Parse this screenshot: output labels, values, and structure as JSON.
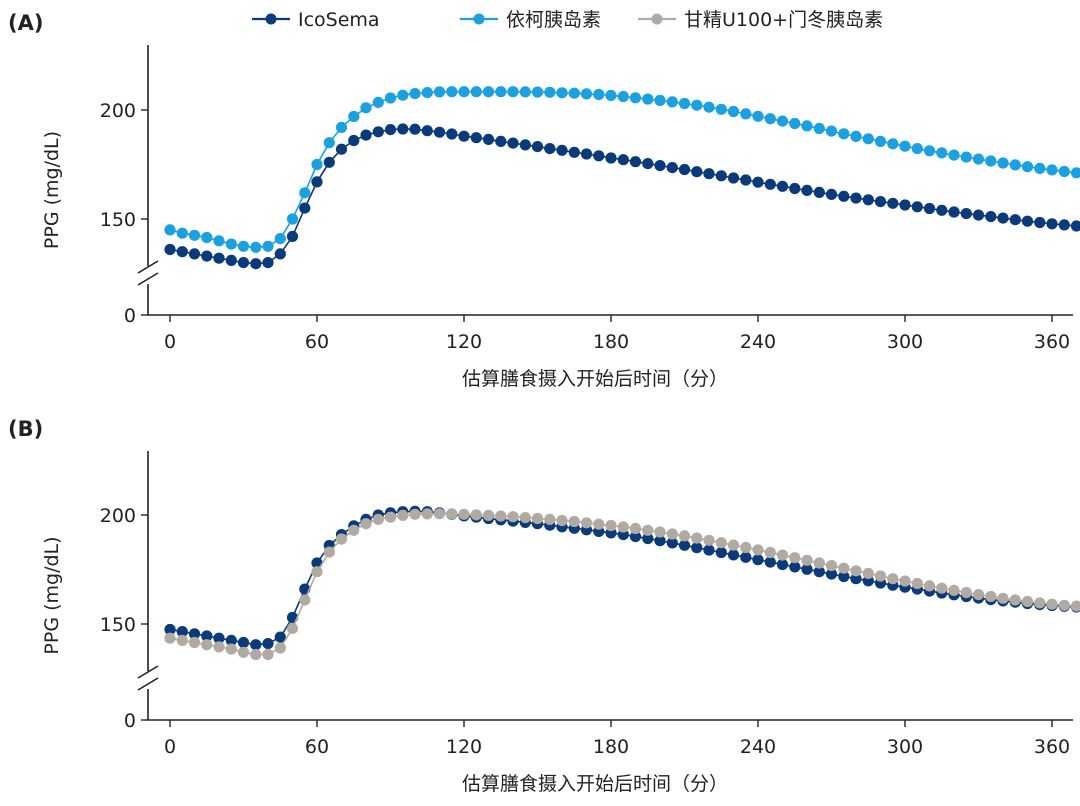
{
  "colors": {
    "icosema": "#0a3a7a",
    "glargine": "#1ba1e0",
    "degludec": "#b0aaa3",
    "axis": "#222222"
  },
  "legend": [
    {
      "label": "IcoSema",
      "color": "#0a3a7a"
    },
    {
      "label": "依柯胰岛素",
      "color": "#1ba1e0"
    },
    {
      "label": "甘精U100+门冬胰岛素",
      "color": "#b0aaa3"
    }
  ],
  "chart_data": [
    {
      "panel_label": "(A)",
      "type": "scatter",
      "ylabel": "PPG (mg/dL)",
      "xlabel": "估算膳食摄入开始后时间（分）",
      "x_ticks": [
        0,
        60,
        120,
        180,
        240,
        300,
        360
      ],
      "y_ticks": [
        0,
        150,
        200
      ],
      "xlim": [
        -8,
        372
      ],
      "ylim": [
        0,
        230
      ],
      "axis_break": "between 0 and ~135",
      "grid": false,
      "legend_position": "top",
      "x": [
        0,
        5,
        10,
        15,
        20,
        25,
        30,
        35,
        40,
        45,
        50,
        55,
        60,
        65,
        70,
        75,
        80,
        85,
        90,
        95,
        100,
        105,
        110,
        115,
        120,
        125,
        130,
        135,
        140,
        145,
        150,
        155,
        160,
        165,
        170,
        175,
        180,
        185,
        190,
        195,
        200,
        205,
        210,
        215,
        220,
        225,
        230,
        235,
        240,
        245,
        250,
        255,
        260,
        265,
        270,
        275,
        280,
        285,
        290,
        295,
        300,
        305,
        310,
        315,
        320,
        325,
        330,
        335,
        340,
        345,
        350,
        355,
        360,
        365,
        370
      ],
      "series": [
        {
          "name": "IcoSema",
          "color": "#0a3a7a",
          "values": [
            136,
            135,
            134,
            133,
            132,
            131,
            130,
            129.5,
            130,
            134,
            142,
            155,
            167,
            176,
            182,
            186,
            188.5,
            190,
            191,
            191.3,
            191.2,
            190.5,
            189.8,
            189,
            188,
            187.3,
            186.5,
            185.6,
            184.8,
            184,
            183.2,
            182.3,
            181.5,
            180.6,
            179.8,
            179,
            178,
            177.2,
            176.3,
            175.4,
            174.5,
            173.6,
            172.7,
            171.7,
            170.8,
            169.8,
            168.8,
            167.9,
            166.9,
            165.9,
            165,
            164,
            163.1,
            162.2,
            161.3,
            160.4,
            159.6,
            158.8,
            158,
            157.2,
            156.4,
            155.6,
            154.8,
            154,
            153.2,
            152.5,
            151.8,
            151.1,
            150.4,
            149.7,
            149,
            148.4,
            147.8,
            147.3,
            146.8
          ]
        },
        {
          "name": "依柯胰岛素",
          "color": "#1ba1e0",
          "values": [
            145,
            143.5,
            142.5,
            141.5,
            140,
            138.5,
            137.5,
            137,
            137.5,
            141,
            150,
            162,
            175,
            185,
            192,
            197,
            201,
            203.5,
            205.5,
            206.8,
            207.5,
            208,
            208.3,
            208.4,
            208.4,
            208.4,
            208.4,
            208.4,
            208.4,
            208.3,
            208.2,
            208.1,
            207.9,
            207.7,
            207.4,
            207.1,
            206.7,
            206.2,
            205.6,
            205,
            204.4,
            203.7,
            203,
            202.2,
            201.3,
            200.3,
            199.3,
            198.2,
            197.1,
            196,
            194.9,
            193.8,
            192.7,
            191.5,
            190.3,
            189.1,
            187.9,
            186.8,
            185.6,
            184.5,
            183.4,
            182.3,
            181.3,
            180.3,
            179.3,
            178.4,
            177.5,
            176.6,
            175.7,
            174.8,
            174,
            173.2,
            172.5,
            171.8,
            171.2
          ]
        }
      ]
    },
    {
      "panel_label": "(B)",
      "type": "scatter",
      "ylabel": "PPG (mg/dL)",
      "xlabel": "估算膳食摄入开始后时间（分）",
      "x_ticks": [
        0,
        60,
        120,
        180,
        240,
        300,
        360
      ],
      "y_ticks": [
        0,
        150,
        200
      ],
      "xlim": [
        -8,
        372
      ],
      "ylim": [
        0,
        230
      ],
      "axis_break": "between 0 and ~135",
      "grid": false,
      "x": [
        0,
        5,
        10,
        15,
        20,
        25,
        30,
        35,
        40,
        45,
        50,
        55,
        60,
        65,
        70,
        75,
        80,
        85,
        90,
        95,
        100,
        105,
        110,
        115,
        120,
        125,
        130,
        135,
        140,
        145,
        150,
        155,
        160,
        165,
        170,
        175,
        180,
        185,
        190,
        195,
        200,
        205,
        210,
        215,
        220,
        225,
        230,
        235,
        240,
        245,
        250,
        255,
        260,
        265,
        270,
        275,
        280,
        285,
        290,
        295,
        300,
        305,
        310,
        315,
        320,
        325,
        330,
        335,
        340,
        345,
        350,
        355,
        360,
        365,
        370
      ],
      "series": [
        {
          "name": "IcoSema",
          "color": "#0a3a7a",
          "values": [
            147.5,
            146.5,
            145.5,
            144.5,
            143.5,
            142.5,
            141.5,
            140.5,
            141,
            144,
            153,
            166,
            178,
            186,
            191,
            195,
            198,
            200,
            201,
            201.5,
            201.7,
            201.5,
            201,
            200.3,
            199.6,
            199,
            198.4,
            197.8,
            197.2,
            196.6,
            196,
            195.3,
            194.6,
            193.9,
            193.2,
            192.5,
            191.8,
            191,
            190.1,
            189.2,
            188.2,
            187.2,
            186.1,
            185,
            183.9,
            182.8,
            181.7,
            180.6,
            179.5,
            178.4,
            177.3,
            176.2,
            175.1,
            174,
            172.9,
            171.8,
            170.8,
            169.8,
            168.8,
            167.8,
            166.9,
            166,
            165.1,
            164.2,
            163.4,
            162.6,
            161.9,
            161.2,
            160.6,
            160,
            159.4,
            158.9,
            158.5,
            158.1,
            157.8
          ]
        },
        {
          "name": "甘精U100+门冬胰岛素",
          "color": "#b0aaa3",
          "values": [
            143.5,
            142.5,
            141.5,
            140.5,
            139.5,
            138.5,
            137,
            136,
            136,
            139,
            148,
            161,
            174,
            183,
            189,
            193,
            196,
            198,
            199,
            199.8,
            200.3,
            200.5,
            200.6,
            200.5,
            200.3,
            200.1,
            199.8,
            199.5,
            199.2,
            198.8,
            198.4,
            198,
            197.5,
            197,
            196.4,
            195.8,
            195.2,
            194.5,
            193.8,
            193,
            192.2,
            191.3,
            190.4,
            189.4,
            188.4,
            187.3,
            186.2,
            185.1,
            184,
            182.8,
            181.6,
            180.4,
            179.2,
            178,
            176.8,
            175.6,
            174.4,
            173.2,
            172,
            170.8,
            169.7,
            168.6,
            167.5,
            166.4,
            165.4,
            164.4,
            163.5,
            162.6,
            161.8,
            161,
            160.3,
            159.7,
            159.1,
            158.6,
            158.2
          ]
        }
      ]
    }
  ]
}
